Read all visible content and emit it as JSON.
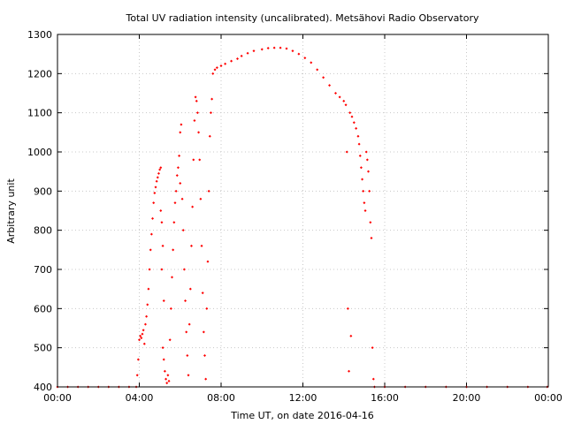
{
  "chart_data": {
    "type": "scatter",
    "title": "Total UV radiation intensity (uncalibrated). Metsähovi Radio Observatory",
    "xlabel": "Time UT, on date 2016-04-16",
    "ylabel": "Arbitrary unit",
    "xlim": [
      0,
      24
    ],
    "ylim": [
      400,
      1300
    ],
    "x_ticks": [
      {
        "value": 0,
        "label": "00:00"
      },
      {
        "value": 4,
        "label": "04:00"
      },
      {
        "value": 8,
        "label": "08:00"
      },
      {
        "value": 12,
        "label": "12:00"
      },
      {
        "value": 16,
        "label": "16:00"
      },
      {
        "value": 20,
        "label": "20:00"
      },
      {
        "value": 24,
        "label": "00:00"
      }
    ],
    "y_ticks": [
      {
        "value": 400,
        "label": "400"
      },
      {
        "value": 500,
        "label": "500"
      },
      {
        "value": 600,
        "label": "600"
      },
      {
        "value": 700,
        "label": "700"
      },
      {
        "value": 800,
        "label": "800"
      },
      {
        "value": 900,
        "label": "900"
      },
      {
        "value": 1000,
        "label": "1000"
      },
      {
        "value": 1100,
        "label": "1100"
      },
      {
        "value": 1200,
        "label": "1200"
      },
      {
        "value": 1300,
        "label": "1300"
      }
    ],
    "grid": true,
    "legend": "none",
    "series_color": "#ff0000",
    "series": [
      {
        "points": [
          [
            0.0,
            400
          ],
          [
            0.5,
            400
          ],
          [
            1.0,
            400
          ],
          [
            1.5,
            400
          ],
          [
            2.0,
            400
          ],
          [
            2.5,
            400
          ],
          [
            3.0,
            400
          ],
          [
            3.5,
            400
          ],
          [
            3.85,
            400
          ],
          [
            3.9,
            430
          ],
          [
            3.95,
            470
          ],
          [
            4.0,
            520
          ],
          [
            4.05,
            530
          ],
          [
            4.1,
            525
          ],
          [
            4.15,
            535
          ],
          [
            4.2,
            545
          ],
          [
            4.25,
            510
          ],
          [
            4.3,
            560
          ],
          [
            4.35,
            580
          ],
          [
            4.4,
            610
          ],
          [
            4.45,
            650
          ],
          [
            4.5,
            700
          ],
          [
            4.55,
            750
          ],
          [
            4.6,
            790
          ],
          [
            4.65,
            830
          ],
          [
            4.7,
            870
          ],
          [
            4.75,
            895
          ],
          [
            4.8,
            910
          ],
          [
            4.85,
            925
          ],
          [
            4.9,
            935
          ],
          [
            4.95,
            945
          ],
          [
            5.0,
            955
          ],
          [
            5.05,
            960
          ],
          [
            5.05,
            850
          ],
          [
            5.1,
            820
          ],
          [
            5.1,
            700
          ],
          [
            5.15,
            500
          ],
          [
            5.15,
            760
          ],
          [
            5.2,
            620
          ],
          [
            5.2,
            470
          ],
          [
            5.25,
            440
          ],
          [
            5.3,
            420
          ],
          [
            5.35,
            410
          ],
          [
            5.4,
            430
          ],
          [
            5.45,
            415
          ],
          [
            5.5,
            520
          ],
          [
            5.55,
            600
          ],
          [
            5.6,
            680
          ],
          [
            5.65,
            750
          ],
          [
            5.7,
            820
          ],
          [
            5.75,
            870
          ],
          [
            5.8,
            900
          ],
          [
            5.85,
            940
          ],
          [
            5.9,
            960
          ],
          [
            5.95,
            990
          ],
          [
            6.0,
            1050
          ],
          [
            6.05,
            1070
          ],
          [
            6.0,
            920
          ],
          [
            6.1,
            880
          ],
          [
            6.15,
            800
          ],
          [
            6.2,
            700
          ],
          [
            6.25,
            620
          ],
          [
            6.3,
            540
          ],
          [
            6.35,
            480
          ],
          [
            6.4,
            430
          ],
          [
            6.45,
            560
          ],
          [
            6.5,
            650
          ],
          [
            6.55,
            760
          ],
          [
            6.6,
            860
          ],
          [
            6.65,
            980
          ],
          [
            6.7,
            1080
          ],
          [
            6.75,
            1140
          ],
          [
            6.8,
            1130
          ],
          [
            6.85,
            1100
          ],
          [
            6.9,
            1050
          ],
          [
            6.95,
            980
          ],
          [
            7.0,
            880
          ],
          [
            7.05,
            760
          ],
          [
            7.1,
            640
          ],
          [
            7.15,
            540
          ],
          [
            7.2,
            480
          ],
          [
            7.25,
            420
          ],
          [
            7.3,
            600
          ],
          [
            7.35,
            720
          ],
          [
            7.4,
            900
          ],
          [
            7.45,
            1040
          ],
          [
            7.5,
            1100
          ],
          [
            7.55,
            1135
          ],
          [
            7.6,
            1200
          ],
          [
            7.7,
            1210
          ],
          [
            7.8,
            1215
          ],
          [
            8.0,
            1220
          ],
          [
            8.2,
            1225
          ],
          [
            8.5,
            1232
          ],
          [
            8.8,
            1238
          ],
          [
            9.0,
            1245
          ],
          [
            9.3,
            1252
          ],
          [
            9.6,
            1258
          ],
          [
            10.0,
            1262
          ],
          [
            10.3,
            1265
          ],
          [
            10.6,
            1266
          ],
          [
            10.9,
            1266
          ],
          [
            11.2,
            1264
          ],
          [
            11.5,
            1258
          ],
          [
            11.8,
            1250
          ],
          [
            12.1,
            1240
          ],
          [
            12.4,
            1228
          ],
          [
            12.7,
            1210
          ],
          [
            13.0,
            1190
          ],
          [
            13.3,
            1170
          ],
          [
            13.6,
            1150
          ],
          [
            13.8,
            1140
          ],
          [
            14.0,
            1130
          ],
          [
            14.1,
            1120
          ],
          [
            14.15,
            1000
          ],
          [
            14.2,
            600
          ],
          [
            14.25,
            440
          ],
          [
            14.3,
            1100
          ],
          [
            14.35,
            530
          ],
          [
            14.4,
            1090
          ],
          [
            14.5,
            1075
          ],
          [
            14.6,
            1060
          ],
          [
            14.7,
            1040
          ],
          [
            14.75,
            1020
          ],
          [
            14.8,
            990
          ],
          [
            14.85,
            960
          ],
          [
            14.9,
            930
          ],
          [
            14.95,
            900
          ],
          [
            15.0,
            870
          ],
          [
            15.05,
            850
          ],
          [
            15.1,
            1000
          ],
          [
            15.15,
            980
          ],
          [
            15.2,
            950
          ],
          [
            15.25,
            900
          ],
          [
            15.3,
            820
          ],
          [
            15.35,
            780
          ],
          [
            15.4,
            500
          ],
          [
            15.45,
            420
          ],
          [
            15.5,
            400
          ],
          [
            16.0,
            400
          ],
          [
            17.0,
            400
          ],
          [
            18.0,
            400
          ],
          [
            19.0,
            400
          ],
          [
            20.0,
            400
          ],
          [
            21.0,
            400
          ],
          [
            22.0,
            400
          ],
          [
            23.0,
            400
          ],
          [
            23.95,
            400
          ]
        ]
      }
    ]
  }
}
